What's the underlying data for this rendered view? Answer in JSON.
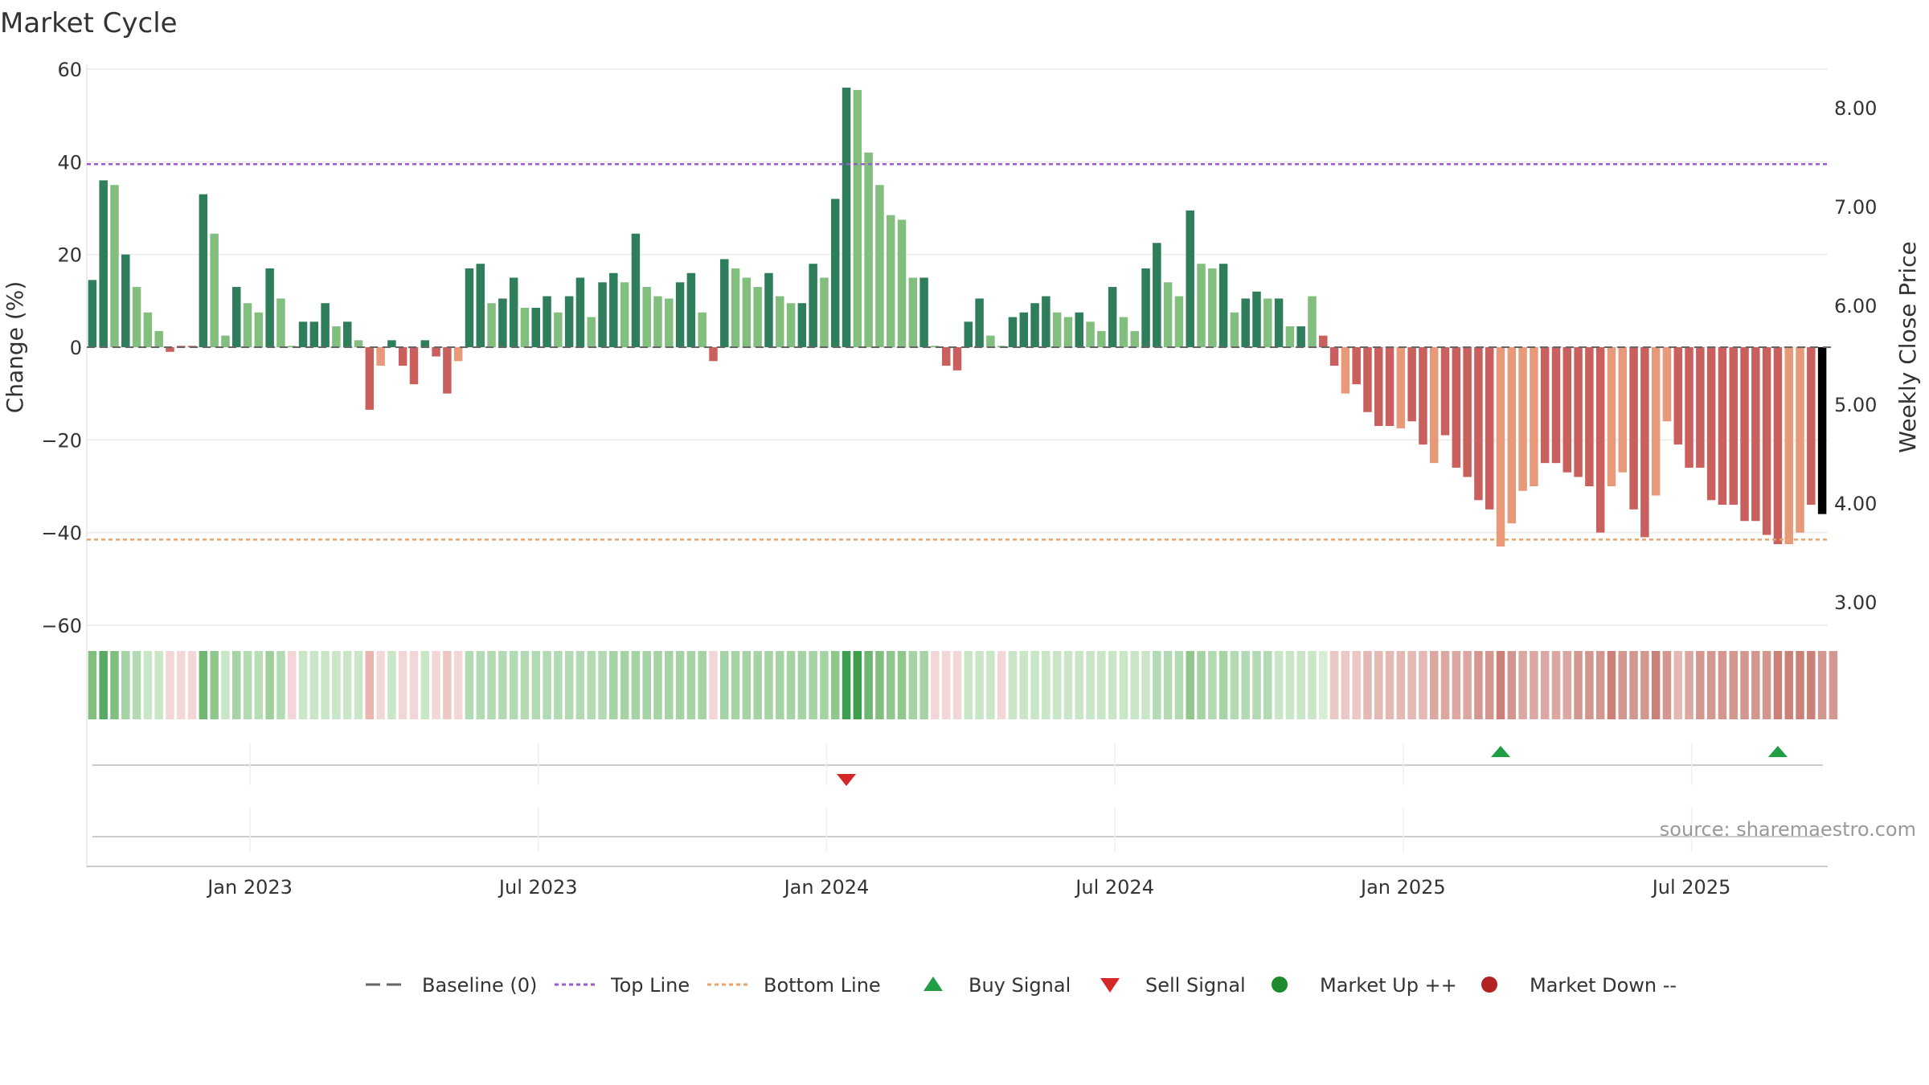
{
  "chart_data": {
    "type": "bar",
    "title": "Market Cycle",
    "ylabel_left": "Change (%)",
    "ylabel_right": "Weekly Close Price",
    "ylim": [
      -60,
      60
    ],
    "y_ticks": [
      60,
      40,
      20,
      0,
      -20,
      -40,
      -60
    ],
    "y_tick_labels": [
      "60",
      "40",
      "20",
      "0",
      "−20",
      "−40",
      "−60"
    ],
    "y2_tick_labels": [
      "8.00",
      "7.00",
      "6.00",
      "5.00",
      "4.00",
      "3.00"
    ],
    "top_line": 39.5,
    "bottom_line": -41.5,
    "x_tick_labels": [
      "Jan 2023",
      "Jul 2023",
      "Jan 2024",
      "Jul 2024",
      "Jan 2025",
      "Jul 2025"
    ],
    "x_tick_bar_index": [
      14,
      40,
      66,
      92,
      118,
      144
    ],
    "values": [
      14.5,
      36,
      35,
      20,
      13,
      7.5,
      3.5,
      -1,
      0.3,
      0.3,
      33,
      24.5,
      2.5,
      13,
      9.5,
      7.5,
      17,
      10.5,
      0.3,
      5.5,
      5.5,
      9.5,
      4.5,
      5.5,
      1.5,
      -13.5,
      -4,
      1.5,
      -4,
      -8,
      1.5,
      -2,
      -10,
      -3,
      17,
      18,
      9.5,
      10.5,
      15,
      8.5,
      8.5,
      11,
      7.5,
      11,
      15,
      6.5,
      14,
      16,
      14,
      24.5,
      13,
      11,
      10.5,
      14,
      16,
      7.5,
      -3,
      19,
      17,
      15,
      13,
      16,
      11,
      9.5,
      9.5,
      18,
      15,
      32,
      56,
      55.5,
      42,
      35,
      28.5,
      27.5,
      15,
      15,
      0.3,
      -4,
      -5,
      5.5,
      10.5,
      2.5,
      0.3,
      6.5,
      7.5,
      9.5,
      11,
      7.5,
      6.5,
      7.5,
      5.5,
      3.5,
      13,
      6.5,
      3.5,
      17,
      22.5,
      14,
      11,
      29.5,
      18,
      17,
      18,
      7.5,
      10.5,
      12,
      10.5,
      10.5,
      4.5,
      4.5,
      11,
      2.5,
      -4,
      -10,
      -8,
      -14,
      -17,
      -17,
      -17.5,
      -16,
      -21,
      -25,
      -19,
      -26,
      -28,
      -33,
      -35,
      -43,
      -38,
      -31,
      -30,
      -25,
      -25,
      -27,
      -28,
      -30,
      -40,
      -30,
      -27,
      -35,
      -41,
      -32,
      -16,
      -21,
      -26,
      -26,
      -33,
      -34,
      -34,
      -37.5,
      -37.5,
      -40.5,
      -42.5,
      -42.5,
      -40,
      -34,
      -36
    ],
    "bar_colors": [
      "#2e7d5b",
      "#2e7d5b",
      "#82bf7f",
      "#2e7d5b",
      "#82bf7f",
      "#82bf7f",
      "#82bf7f",
      "#c9605e",
      "#c9605e",
      "#c9605e",
      "#2e7d5b",
      "#82bf7f",
      "#82bf7f",
      "#2e7d5b",
      "#82bf7f",
      "#82bf7f",
      "#2e7d5b",
      "#82bf7f",
      "#82bf7f",
      "#2e7d5b",
      "#2e7d5b",
      "#2e7d5b",
      "#82bf7f",
      "#2e7d5b",
      "#82bf7f",
      "#c9605e",
      "#e8997a",
      "#2e7d5b",
      "#c9605e",
      "#c9605e",
      "#2e7d5b",
      "#c9605e",
      "#c9605e",
      "#e8997a",
      "#2e7d5b",
      "#2e7d5b",
      "#82bf7f",
      "#2e7d5b",
      "#2e7d5b",
      "#82bf7f",
      "#2e7d5b",
      "#2e7d5b",
      "#82bf7f",
      "#2e7d5b",
      "#2e7d5b",
      "#82bf7f",
      "#2e7d5b",
      "#2e7d5b",
      "#82bf7f",
      "#2e7d5b",
      "#82bf7f",
      "#82bf7f",
      "#82bf7f",
      "#2e7d5b",
      "#2e7d5b",
      "#82bf7f",
      "#c9605e",
      "#2e7d5b",
      "#82bf7f",
      "#82bf7f",
      "#82bf7f",
      "#2e7d5b",
      "#82bf7f",
      "#82bf7f",
      "#2e7d5b",
      "#2e7d5b",
      "#82bf7f",
      "#2e7d5b",
      "#2e7d5b",
      "#82bf7f",
      "#82bf7f",
      "#82bf7f",
      "#82bf7f",
      "#82bf7f",
      "#82bf7f",
      "#2e7d5b",
      "#82bf7f",
      "#c9605e",
      "#c9605e",
      "#2e7d5b",
      "#2e7d5b",
      "#82bf7f",
      "#82bf7f",
      "#2e7d5b",
      "#2e7d5b",
      "#2e7d5b",
      "#2e7d5b",
      "#82bf7f",
      "#82bf7f",
      "#2e7d5b",
      "#82bf7f",
      "#82bf7f",
      "#2e7d5b",
      "#82bf7f",
      "#82bf7f",
      "#2e7d5b",
      "#2e7d5b",
      "#82bf7f",
      "#82bf7f",
      "#2e7d5b",
      "#82bf7f",
      "#82bf7f",
      "#2e7d5b",
      "#82bf7f",
      "#2e7d5b",
      "#2e7d5b",
      "#82bf7f",
      "#2e7d5b",
      "#82bf7f",
      "#2e7d5b",
      "#82bf7f",
      "#c9605e",
      "#c9605e",
      "#e8997a",
      "#c9605e",
      "#c9605e",
      "#c9605e",
      "#c9605e",
      "#e8997a",
      "#c9605e",
      "#c9605e",
      "#e8997a",
      "#c9605e",
      "#c9605e",
      "#c9605e",
      "#c9605e",
      "#c9605e",
      "#e8997a",
      "#e8997a",
      "#e8997a",
      "#e8997a",
      "#c9605e",
      "#c9605e",
      "#c9605e",
      "#c9605e",
      "#c9605e",
      "#c9605e",
      "#e8997a",
      "#e8997a",
      "#c9605e",
      "#c9605e",
      "#e8997a",
      "#e8997a",
      "#c9605e",
      "#c9605e",
      "#c9605e",
      "#c9605e",
      "#c9605e",
      "#c9605e",
      "#c9605e",
      "#c9605e",
      "#c9605e",
      "#c9605e",
      "#e8997a",
      "#e8997a",
      "#c9605e"
    ],
    "heat_colors": [
      "#82bf7f",
      "#5aa866",
      "#82bf7f",
      "#a6d3a4",
      "#b3dbb3",
      "#c9e6c6",
      "#c9e6c6",
      "#f3d7d7",
      "#f3d7d7",
      "#f3d7d7",
      "#6eb671",
      "#8fc78c",
      "#c9e6c6",
      "#a6d3a4",
      "#b3dbb3",
      "#b8deb6",
      "#9fd09c",
      "#b3dbb3",
      "#f3d7d7",
      "#c9e6c6",
      "#c9e6c6",
      "#c9e6c6",
      "#c9e6c6",
      "#c9e6c6",
      "#c9e6c6",
      "#e8b6ae",
      "#f3d7d7",
      "#c9e6c6",
      "#f3d7d7",
      "#f3d7d7",
      "#c9e6c6",
      "#f3d7d7",
      "#efc7c2",
      "#f3d7d7",
      "#b3dbb3",
      "#b3dbb3",
      "#b3dbb3",
      "#b3dbb3",
      "#b3dbb3",
      "#b3dbb3",
      "#b3dbb3",
      "#b3dbb3",
      "#b3dbb3",
      "#b3dbb3",
      "#b3dbb3",
      "#b3dbb3",
      "#b3dbb3",
      "#a6d3a4",
      "#a6d3a4",
      "#a6d3a4",
      "#a6d3a4",
      "#a6d3a4",
      "#a6d3a4",
      "#a6d3a4",
      "#a6d3a4",
      "#a6d3a4",
      "#f3d7d7",
      "#a6d3a4",
      "#a6d3a4",
      "#a6d3a4",
      "#a6d3a4",
      "#a6d3a4",
      "#a6d3a4",
      "#a6d3a4",
      "#a6d3a4",
      "#a6d3a4",
      "#a6d3a4",
      "#8fc78c",
      "#3d9e4e",
      "#3d9e4e",
      "#6eb671",
      "#82bf7f",
      "#8fc78c",
      "#8fc78c",
      "#a6d3a4",
      "#a6d3a4",
      "#f3d7d7",
      "#f3d7d7",
      "#f3d7d7",
      "#c9e6c6",
      "#c9e6c6",
      "#c9e6c6",
      "#f3d7d7",
      "#c9e6c6",
      "#c9e6c6",
      "#c9e6c6",
      "#c9e6c6",
      "#c9e6c6",
      "#c9e6c6",
      "#c9e6c6",
      "#c9e6c6",
      "#c9e6c6",
      "#c9e6c6",
      "#c9e6c6",
      "#c9e6c6",
      "#c9e6c6",
      "#b3dbb3",
      "#b3dbb3",
      "#b3dbb3",
      "#8fc78c",
      "#a6d3a4",
      "#b3dbb3",
      "#a6d3a4",
      "#b3dbb3",
      "#b3dbb3",
      "#b3dbb3",
      "#b3dbb3",
      "#c9e6c6",
      "#c9e6c6",
      "#c9e6c6",
      "#c9e6c6",
      "#d7edd4",
      "#ebc8c3",
      "#ebc8c3",
      "#ebc8c3",
      "#e5b9b3",
      "#e5b9b3",
      "#e5b9b3",
      "#e5b9b3",
      "#e5b9b3",
      "#e5b9b3",
      "#dca7a0",
      "#dca7a0",
      "#dca7a0",
      "#dca7a0",
      "#d49790",
      "#d49790",
      "#cc8178",
      "#d49790",
      "#dca7a0",
      "#dca7a0",
      "#dca7a0",
      "#dca7a0",
      "#dca7a0",
      "#d49790",
      "#d49790",
      "#d49790",
      "#cc8178",
      "#d49790",
      "#d49790",
      "#d49790",
      "#cc8178",
      "#d49790",
      "#e5b9b3",
      "#dca7a0",
      "#d49790",
      "#d49790",
      "#d49790",
      "#d49790",
      "#d49790",
      "#d49790",
      "#d49790",
      "#cc8178",
      "#cc8178",
      "#cc8178",
      "#cc8178",
      "#d49790",
      "#d49790"
    ],
    "sell_signal_bar_index": [
      68
    ],
    "buy_signal_bar_index": [
      127,
      152
    ],
    "source": "source: sharemaestro.com",
    "colors": {
      "strong_up": "#2e7d5b",
      "up": "#82bf7f",
      "down": "#e8997a",
      "strong_down": "#c9605e",
      "top_line": "#9b59d0",
      "bottom_line": "#e8a36d",
      "baseline": "#666666",
      "buy": "#1f9e45",
      "sell": "#d62728",
      "market_up": "#1e8a2e",
      "market_down": "#b22222"
    },
    "legend": [
      {
        "label": "Baseline (0)",
        "marker": "dash"
      },
      {
        "label": "Top Line",
        "marker": "dot-purple"
      },
      {
        "label": "Bottom Line",
        "marker": "dot-orange"
      },
      {
        "label": "Buy Signal",
        "marker": "triangle-up"
      },
      {
        "label": "Sell Signal",
        "marker": "triangle-down"
      },
      {
        "label": "Market Up ++",
        "marker": "circle-green"
      },
      {
        "label": "Market Down --",
        "marker": "circle-red"
      }
    ]
  }
}
